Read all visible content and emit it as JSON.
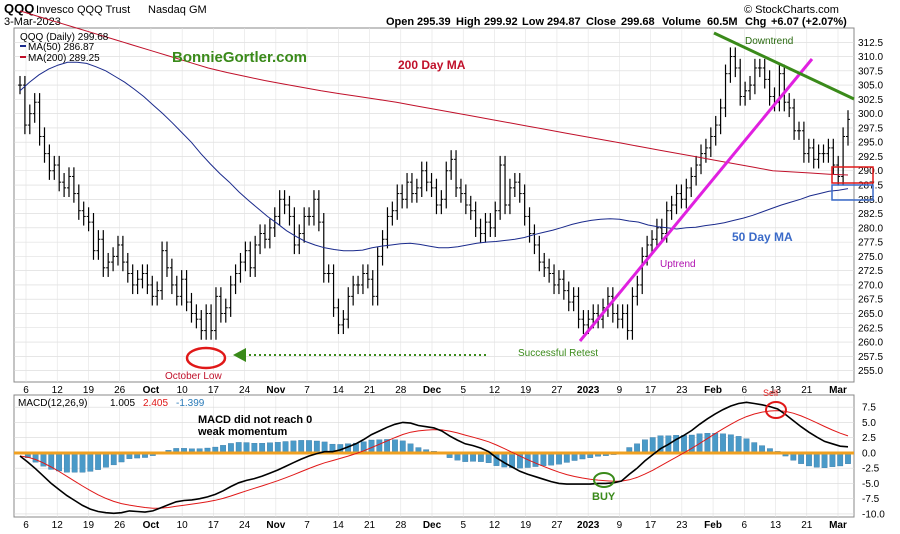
{
  "header": {
    "symbol": "QQQ",
    "name": "Invesco QQQ Trust",
    "exchange": "Nasdaq GM",
    "date": "3-Mar-2023",
    "open_label": "Open",
    "open": "295.39",
    "high_label": "High",
    "high": "299.92",
    "low_label": "Low",
    "low": "294.87",
    "close_label": "Close",
    "close": "299.68",
    "volume_label": "Volume",
    "volume": "60.5M",
    "chg_label": "Chg",
    "chg": "+6.07 (+2.07%)",
    "watermark": "© StockCharts.com"
  },
  "colors": {
    "price": "#000000",
    "ma50": "#1a2a8c",
    "ma200": "#c0102a",
    "uptrend": "#e020e0",
    "downtrend": "#3a8a1a",
    "macd": "#000000",
    "signal": "#e01818",
    "histogram": "#4a9ac8",
    "zero_line": "#f0a020"
  },
  "chart_data": [
    {
      "type": "line",
      "title": "QQQ (Daily) 299.68",
      "legend": [
        {
          "label": "MA(50) 286.87",
          "color": "#1a2a8c"
        },
        {
          "label": "MA(200) 289.25",
          "color": "#c0102a"
        }
      ],
      "legend_placement": "top-left",
      "ylim": [
        253,
        315
      ],
      "y_ticks": [
        "312.5",
        "310.0",
        "307.5",
        "305.0",
        "302.5",
        "300.0",
        "297.5",
        "295.0",
        "292.5",
        "290.0",
        "287.5",
        "285.0",
        "282.5",
        "280.0",
        "277.5",
        "275.0",
        "272.5",
        "270.0",
        "267.5",
        "265.0",
        "262.5",
        "260.0",
        "257.5",
        "255.0"
      ],
      "x_ticks": [
        "6",
        "12",
        "19",
        "26",
        "Oct",
        "10",
        "17",
        "24",
        "Nov",
        "7",
        "14",
        "21",
        "28",
        "Dec",
        "5",
        "12",
        "19",
        "27",
        "2023",
        "9",
        "17",
        "23",
        "Feb",
        "6",
        "13",
        "21",
        "Mar"
      ],
      "grid": true,
      "series": [
        {
          "name": "QQQ",
          "values": [
            305,
            298,
            300,
            302,
            296,
            293,
            290,
            291,
            288,
            287,
            289,
            286,
            283,
            282,
            281,
            276,
            278,
            273,
            274,
            275,
            277,
            274,
            272,
            270,
            271,
            272,
            270,
            268,
            269,
            276,
            273,
            270,
            268,
            271,
            267,
            265,
            264,
            262,
            265,
            262,
            268,
            265,
            266,
            270,
            272,
            274,
            276,
            273,
            277,
            279,
            278,
            280,
            282,
            285,
            284,
            282,
            277,
            279,
            282,
            282,
            285,
            281,
            272,
            272,
            266,
            263,
            264,
            268,
            270,
            270,
            272,
            271,
            268,
            275,
            278,
            282,
            283,
            286,
            285,
            288,
            286,
            287,
            290,
            288,
            287,
            284,
            285,
            290,
            292,
            287,
            286,
            284,
            283,
            280,
            279,
            281,
            280,
            283,
            291,
            284,
            287,
            288,
            286,
            282,
            279,
            277,
            274,
            273,
            272,
            270,
            271,
            269,
            267,
            268,
            264,
            263,
            264,
            265,
            264,
            266,
            268,
            265,
            264,
            265,
            262,
            268,
            270,
            275,
            277,
            278,
            280,
            279,
            283,
            284,
            286,
            285,
            287,
            289,
            291,
            293,
            294,
            296,
            298,
            301,
            307,
            310,
            308,
            303,
            304,
            305,
            308,
            308,
            306,
            303,
            302,
            307,
            302,
            301,
            297,
            297,
            293,
            294,
            292,
            293,
            293,
            294,
            291,
            289,
            296,
            299
          ]
        },
        {
          "name": "MA(50)",
          "values": [
            304,
            305.5,
            306.8,
            307.8,
            308.5,
            309,
            309,
            308.8,
            308.2,
            307.5,
            306.5,
            305.5,
            304.3,
            303,
            301.5,
            300,
            298.4,
            296.7,
            295,
            293,
            291.2,
            289.5,
            288,
            286.3,
            284.8,
            283.4,
            282,
            280.8,
            279.5,
            278.5,
            277.6,
            277,
            276.5,
            276.2,
            276,
            276,
            276.1,
            276.5,
            276.8,
            277,
            277.2,
            277.3,
            277.1,
            276.8,
            276.5,
            276.5,
            276.7,
            277,
            277.3,
            277.5,
            277.6,
            277.8,
            278,
            278.3,
            278.8,
            279.2,
            279.6,
            280.1,
            280.6,
            281,
            281.3,
            281.5,
            281.6,
            281.5,
            281.2,
            281,
            280.5,
            280.2,
            280,
            279.8,
            280,
            280.1,
            280.4,
            280.6,
            280.9,
            281.3,
            281.7,
            282.2,
            282.8,
            283.4,
            284,
            284.5,
            285,
            285.6,
            286,
            286.4,
            286.6,
            286.87
          ]
        },
        {
          "name": "MA(200)",
          "values": [
            318,
            317,
            316,
            315,
            314,
            313,
            312,
            311,
            310,
            309,
            308,
            307.2,
            306.5,
            305.8,
            305.2,
            304.6,
            304,
            303.5,
            303,
            302.5,
            302,
            301.4,
            300.8,
            300.2,
            299.6,
            299,
            298.4,
            297.8,
            297.2,
            296.6,
            296,
            295.4,
            294.8,
            294.2,
            293.6,
            293,
            292.4,
            291.8,
            291.2,
            290.6,
            290,
            289.8,
            289.6,
            289.4,
            289.25
          ]
        }
      ],
      "annotations": [
        "BonnieGortler.com",
        "200 Day MA",
        "50 Day MA",
        "Uptrend",
        "Downtrend",
        "October Low",
        "Successful Retest"
      ]
    },
    {
      "type": "bar",
      "title": "MACD(12,26,9)",
      "legend": [
        {
          "label": "1.005",
          "color": "#000000"
        },
        {
          "label": "2.405",
          "color": "#e01818"
        },
        {
          "label": "-1.399",
          "color": "#4a9ac8"
        }
      ],
      "ylim": [
        -10.5,
        9.5
      ],
      "y_ticks": [
        "7.5",
        "5.0",
        "2.5",
        "0.0",
        "-2.5",
        "-5.0",
        "-7.5",
        "-10.0"
      ],
      "macd": [
        -0.5,
        -1.5,
        -2.6,
        -3.8,
        -5,
        -6,
        -7,
        -7.8,
        -8.6,
        -9.2,
        -9.6,
        -9.8,
        -9.9,
        -9.8,
        -9.5,
        -9.6,
        -9.7,
        -9.5,
        -9,
        -8.5,
        -8,
        -7.8,
        -7.7,
        -7.5,
        -7.2,
        -6.8,
        -6.2,
        -5.5,
        -4.9,
        -4.5,
        -4.2,
        -3.8,
        -3.3,
        -2.8,
        -2.2,
        -1.6,
        -1,
        -0.5,
        -0.1,
        0.2,
        0.2,
        0.5,
        1,
        1.5,
        2.2,
        3,
        3.6,
        4.2,
        4.7,
        5,
        4.9,
        4.5,
        4.3,
        4.1,
        3.6,
        2.8,
        2.1,
        1.5,
        1.2,
        0.8,
        0.2,
        -0.8,
        -1.6,
        -2.3,
        -3,
        -3.5,
        -3.9,
        -4.3,
        -4.7,
        -5,
        -5.1,
        -5.1,
        -5.1,
        -5.1,
        -5,
        -5,
        -4.9,
        -4.6,
        -3.5,
        -2.5,
        -1.3,
        -0.3,
        0.7,
        1.4,
        2.2,
        2.9,
        3.7,
        4.7,
        5.6,
        6.4,
        7.1,
        7.7,
        8.1,
        8.3,
        8.1,
        7.9,
        7.6,
        7.2,
        6.3,
        5.3,
        4.3,
        3.4,
        2.6,
        1.9,
        1.5,
        1.1,
        1.005
      ]
    }
  ],
  "annotation_macd_note_1": "MACD did not reach 0",
  "annotation_macd_note_2": "weak momentum",
  "annotation_buy": "BUY",
  "annotation_sell": "Sell"
}
